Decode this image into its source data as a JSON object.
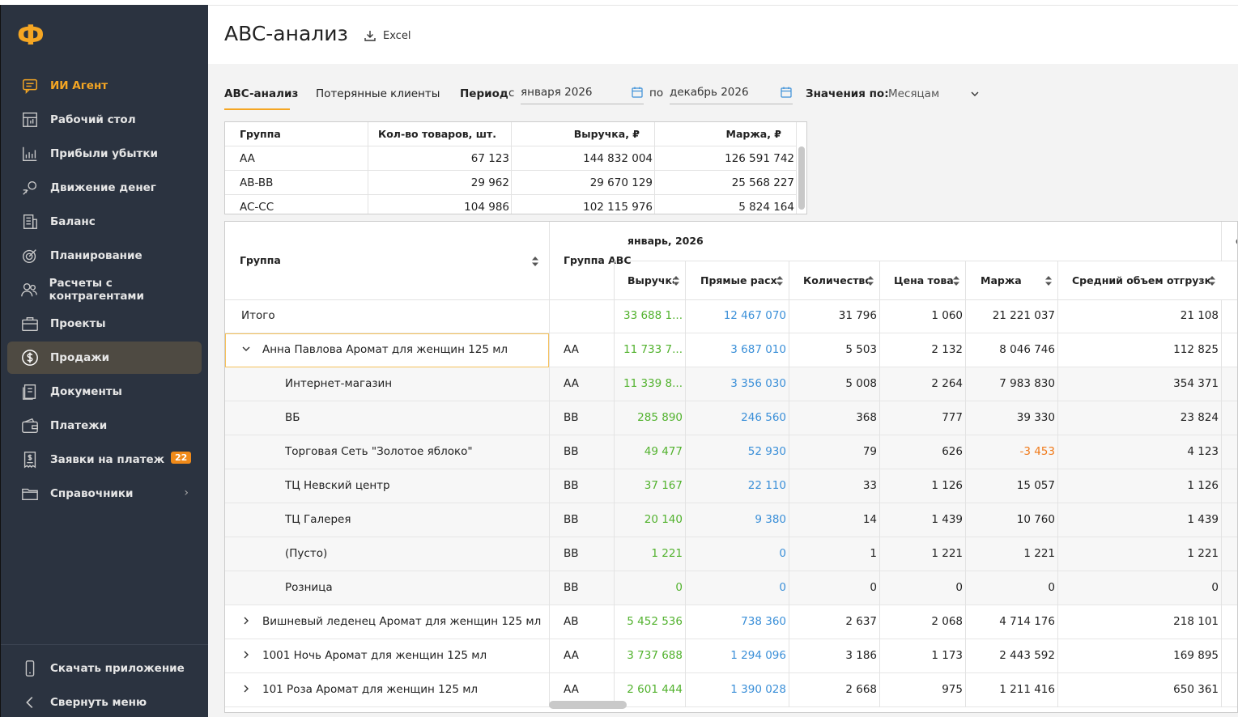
{
  "sidebar": {
    "logo": "Ф",
    "items": [
      {
        "label": "ИИ Агент",
        "icon": "chat-icon"
      },
      {
        "label": "Рабочий стол",
        "icon": "dashboard-icon"
      },
      {
        "label": "Прибыли убытки",
        "icon": "chart-icon"
      },
      {
        "label": "Движение денег",
        "icon": "money-flow-icon"
      },
      {
        "label": "Баланс",
        "icon": "building-icon"
      },
      {
        "label": "Планирование",
        "icon": "target-icon"
      },
      {
        "label": "Расчеты с контрагентами",
        "icon": "users-icon"
      },
      {
        "label": "Проекты",
        "icon": "briefcase-icon"
      },
      {
        "label": "Продажи",
        "icon": "dollar-icon"
      },
      {
        "label": "Документы",
        "icon": "document-icon"
      },
      {
        "label": "Платежи",
        "icon": "wallet-icon"
      },
      {
        "label": "Заявки на платеж",
        "icon": "invoice-icon",
        "badge": "22"
      },
      {
        "label": "Справочники",
        "icon": "folder-icon"
      }
    ],
    "download_app": "Скачать приложение",
    "collapse_menu": "Свернуть меню"
  },
  "header": {
    "title": "ABC-анализ",
    "excel_label": "Excel"
  },
  "tabs": [
    "ABC-анализ",
    "Потерянные клиенты"
  ],
  "filters": {
    "period_label": "Период",
    "from_label": "с",
    "from_value": "января 2026",
    "to_label": "по",
    "to_value": "декабрь 2026",
    "values_by_label": "Значения по:",
    "values_by_value": "Месяцам"
  },
  "summary": {
    "columns": [
      "Группа",
      "Кол-во товаров, шт.",
      "Выручка, ₽",
      "Маржа, ₽"
    ],
    "rows": [
      [
        "AA",
        "67 123",
        "144 832 004",
        "126 591 742"
      ],
      [
        "AB-BB",
        "29 962",
        "29 670 129",
        "25 568 227"
      ],
      [
        "AC-CC",
        "104 986",
        "102 115 976",
        "5 824 164"
      ]
    ]
  },
  "main": {
    "col_group": "Группа",
    "col_abc": "Группа ABC",
    "month_label": "январь, 2026",
    "next_month_fragment": "с",
    "columns": [
      "Выручка",
      "Прямые расходы",
      "Количество",
      "Цена товара",
      "Маржа",
      "Средний объем отгрузки"
    ],
    "total": {
      "label": "Итого",
      "values": [
        "33 688 1...",
        "12 467 070",
        "31 796",
        "1 060",
        "21 221 037",
        "21 108"
      ]
    },
    "rows": [
      {
        "name": "Анна Павлова Аромат для женщин 125 мл",
        "abc": "AA",
        "level": 0,
        "expanded": true,
        "values": [
          "11 733 7...",
          "3 687 010",
          "5 503",
          "2 132",
          "8 046 746",
          "112 825"
        ]
      },
      {
        "name": "Интернет-магазин",
        "abc": "AA",
        "level": 1,
        "values": [
          "11 339 8...",
          "3 356 030",
          "5 008",
          "2 264",
          "7 983 830",
          "354 371"
        ]
      },
      {
        "name": "ВБ",
        "abc": "BB",
        "level": 1,
        "values": [
          "285 890",
          "246 560",
          "368",
          "777",
          "39 330",
          "23 824"
        ]
      },
      {
        "name": "Торговая Сеть \"Золотое яблоко\"",
        "abc": "BB",
        "level": 1,
        "values": [
          "49 477",
          "52 930",
          "79",
          "626",
          "-3 453",
          "4 123"
        ]
      },
      {
        "name": "ТЦ Невский центр",
        "abc": "BB",
        "level": 1,
        "values": [
          "37 167",
          "22 110",
          "33",
          "1 126",
          "15 057",
          "1 126"
        ]
      },
      {
        "name": "ТЦ Галерея",
        "abc": "BB",
        "level": 1,
        "values": [
          "20 140",
          "9 380",
          "14",
          "1 439",
          "10 760",
          "1 439"
        ]
      },
      {
        "name": "(Пусто)",
        "abc": "BB",
        "level": 1,
        "values": [
          "1 221",
          "0",
          "1",
          "1 221",
          "1 221",
          "1 221"
        ]
      },
      {
        "name": "Розница",
        "abc": "BB",
        "level": 1,
        "values": [
          "0",
          "0",
          "0",
          "0",
          "0",
          "0"
        ]
      },
      {
        "name": "Вишневый леденец Аромат для женщин 125 мл",
        "abc": "AB",
        "level": 0,
        "expanded": false,
        "values": [
          "5 452 536",
          "738 360",
          "2 637",
          "2 068",
          "4 714 176",
          "218 101"
        ]
      },
      {
        "name": "1001 Ночь Аромат для женщин 125 мл",
        "abc": "AA",
        "level": 0,
        "expanded": false,
        "values": [
          "3 737 688",
          "1 294 096",
          "3 186",
          "1 173",
          "2 443 592",
          "169 895"
        ]
      },
      {
        "name": "101 Роза Аромат для женщин 125 мл",
        "abc": "AA",
        "level": 0,
        "expanded": false,
        "values": [
          "2 601 444",
          "1 390 028",
          "2 668",
          "975",
          "1 211 416",
          "650 361"
        ]
      }
    ]
  },
  "colors": {
    "accent": "#f5a623",
    "sidebar_bg": "#2b3340",
    "revenue": "#52b22e",
    "expense": "#3a8fd8",
    "negative": "#f07a1a"
  }
}
